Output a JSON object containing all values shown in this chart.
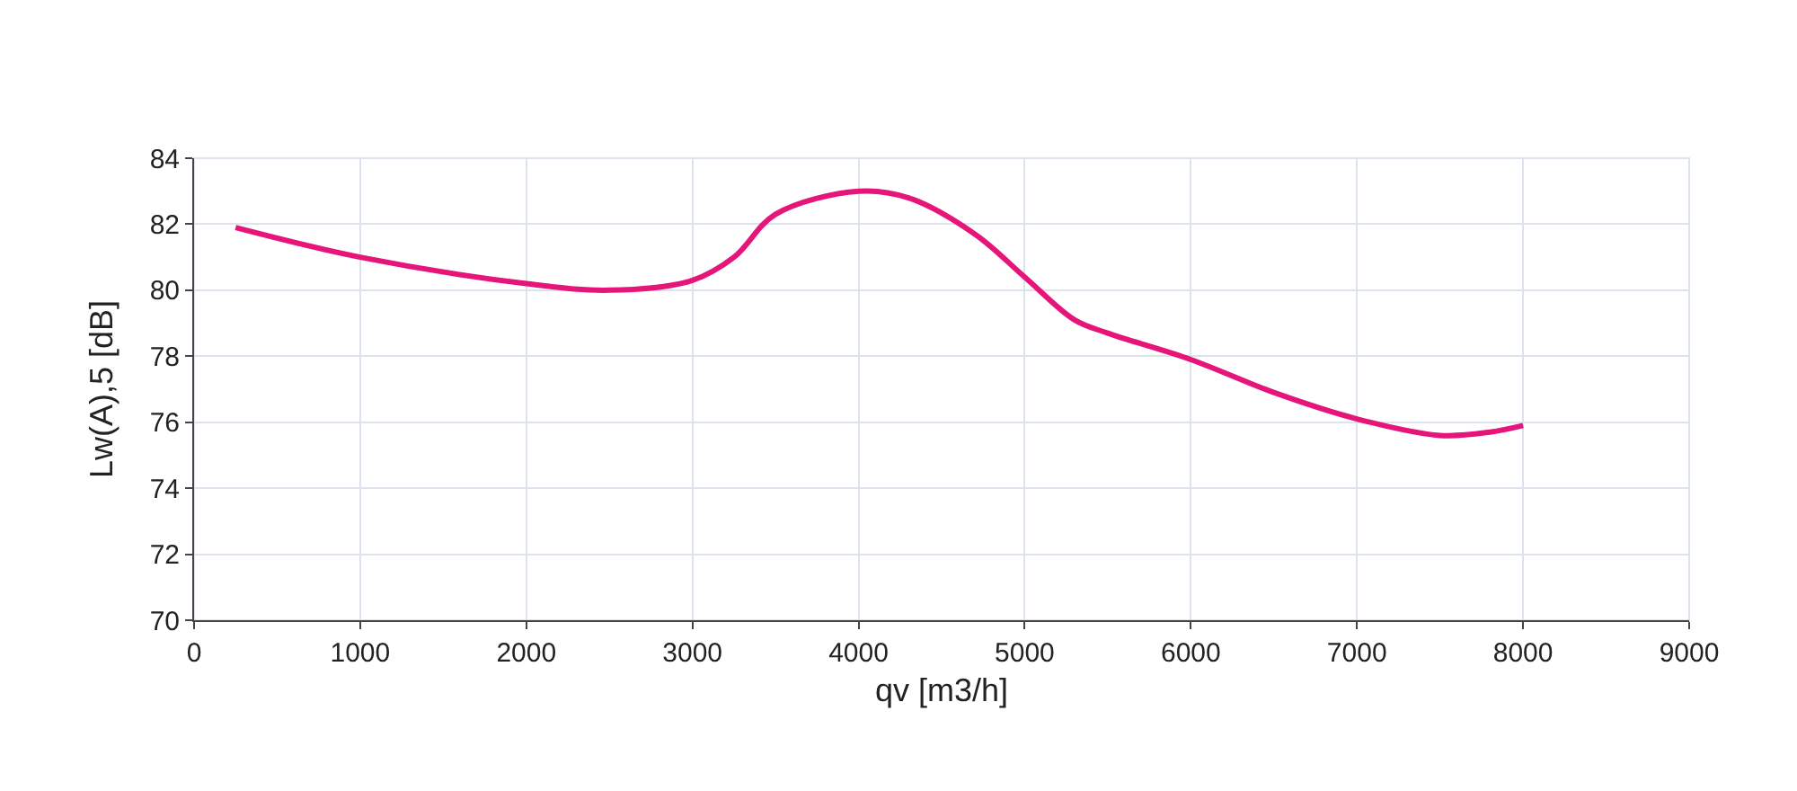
{
  "chart_data": {
    "type": "line",
    "xlabel": "qv [m3/h]",
    "ylabel": "Lw(A),5 [dB]",
    "x": [
      250,
      1000,
      2000,
      2500,
      3000,
      3250,
      3500,
      4000,
      4300,
      4700,
      5000,
      5300,
      5500,
      6000,
      6500,
      7000,
      7500,
      7800,
      8000
    ],
    "series": [
      {
        "color": "#e5157a",
        "values": [
          81.9,
          81.0,
          80.2,
          80.0,
          80.3,
          81.0,
          82.3,
          83.0,
          82.8,
          81.7,
          80.4,
          79.1,
          78.7,
          77.9,
          76.9,
          76.1,
          75.6,
          75.7,
          75.9
        ]
      }
    ],
    "xlim": [
      0,
      9000
    ],
    "xticks": [
      0,
      1000,
      2000,
      3000,
      4000,
      5000,
      6000,
      7000,
      8000,
      9000
    ],
    "ylim": [
      70,
      84
    ],
    "yticks": [
      70,
      72,
      74,
      76,
      78,
      80,
      82,
      84
    ],
    "grid": true,
    "legend": false,
    "marker": "none",
    "line_style": "solid"
  }
}
